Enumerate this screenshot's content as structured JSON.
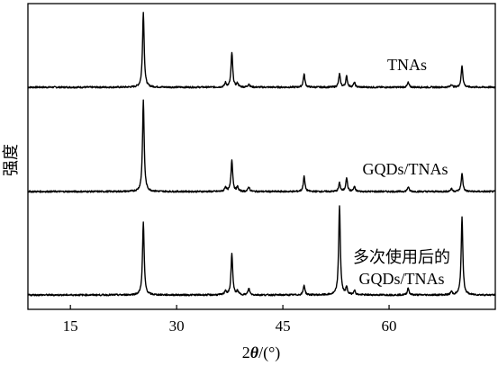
{
  "chart_data": {
    "type": "line",
    "xlabel_prefix": "2",
    "xlabel_theta": "θ",
    "xlabel_suffix": "/(°)",
    "ylabel": "强度",
    "xlim": [
      9,
      75
    ],
    "xticks": [
      15,
      30,
      45,
      60
    ],
    "x_tick_labels": [
      "15",
      "30",
      "45",
      "60"
    ],
    "series": [
      {
        "name": "TNAs",
        "label_lines": [
          "TNAs"
        ],
        "peaks": [
          [
            25.3,
            16.0
          ],
          [
            36.9,
            0.9
          ],
          [
            37.8,
            7.4
          ],
          [
            38.6,
            0.8
          ],
          [
            40.2,
            0.7
          ],
          [
            48.0,
            2.8
          ],
          [
            53.0,
            2.8
          ],
          [
            54.0,
            2.3
          ],
          [
            55.1,
            1.0
          ],
          [
            62.7,
            1.0
          ],
          [
            68.8,
            0.6
          ],
          [
            70.3,
            4.6
          ]
        ]
      },
      {
        "name": "GQDs/TNAs",
        "label_lines": [
          "GQDs/TNAs"
        ],
        "peaks": [
          [
            25.3,
            19.4
          ],
          [
            36.9,
            1.0
          ],
          [
            37.8,
            6.8
          ],
          [
            38.6,
            0.9
          ],
          [
            40.2,
            1.0
          ],
          [
            48.0,
            3.2
          ],
          [
            53.0,
            1.8
          ],
          [
            54.0,
            3.0
          ],
          [
            55.1,
            1.0
          ],
          [
            62.7,
            1.0
          ],
          [
            68.8,
            0.6
          ],
          [
            70.3,
            3.8
          ]
        ]
      },
      {
        "name": "多次使用后的GQDs/TNAs",
        "label_lines": [
          "多次使用后的",
          "GQDs/TNAs"
        ],
        "peaks": [
          [
            25.3,
            15.5
          ],
          [
            36.9,
            0.9
          ],
          [
            37.8,
            8.9
          ],
          [
            38.6,
            0.8
          ],
          [
            40.2,
            1.4
          ],
          [
            48.0,
            2.1
          ],
          [
            53.0,
            19.1
          ],
          [
            54.0,
            1.5
          ],
          [
            55.1,
            1.0
          ],
          [
            62.7,
            1.5
          ],
          [
            68.8,
            0.7
          ],
          [
            70.3,
            16.5
          ]
        ]
      }
    ]
  }
}
